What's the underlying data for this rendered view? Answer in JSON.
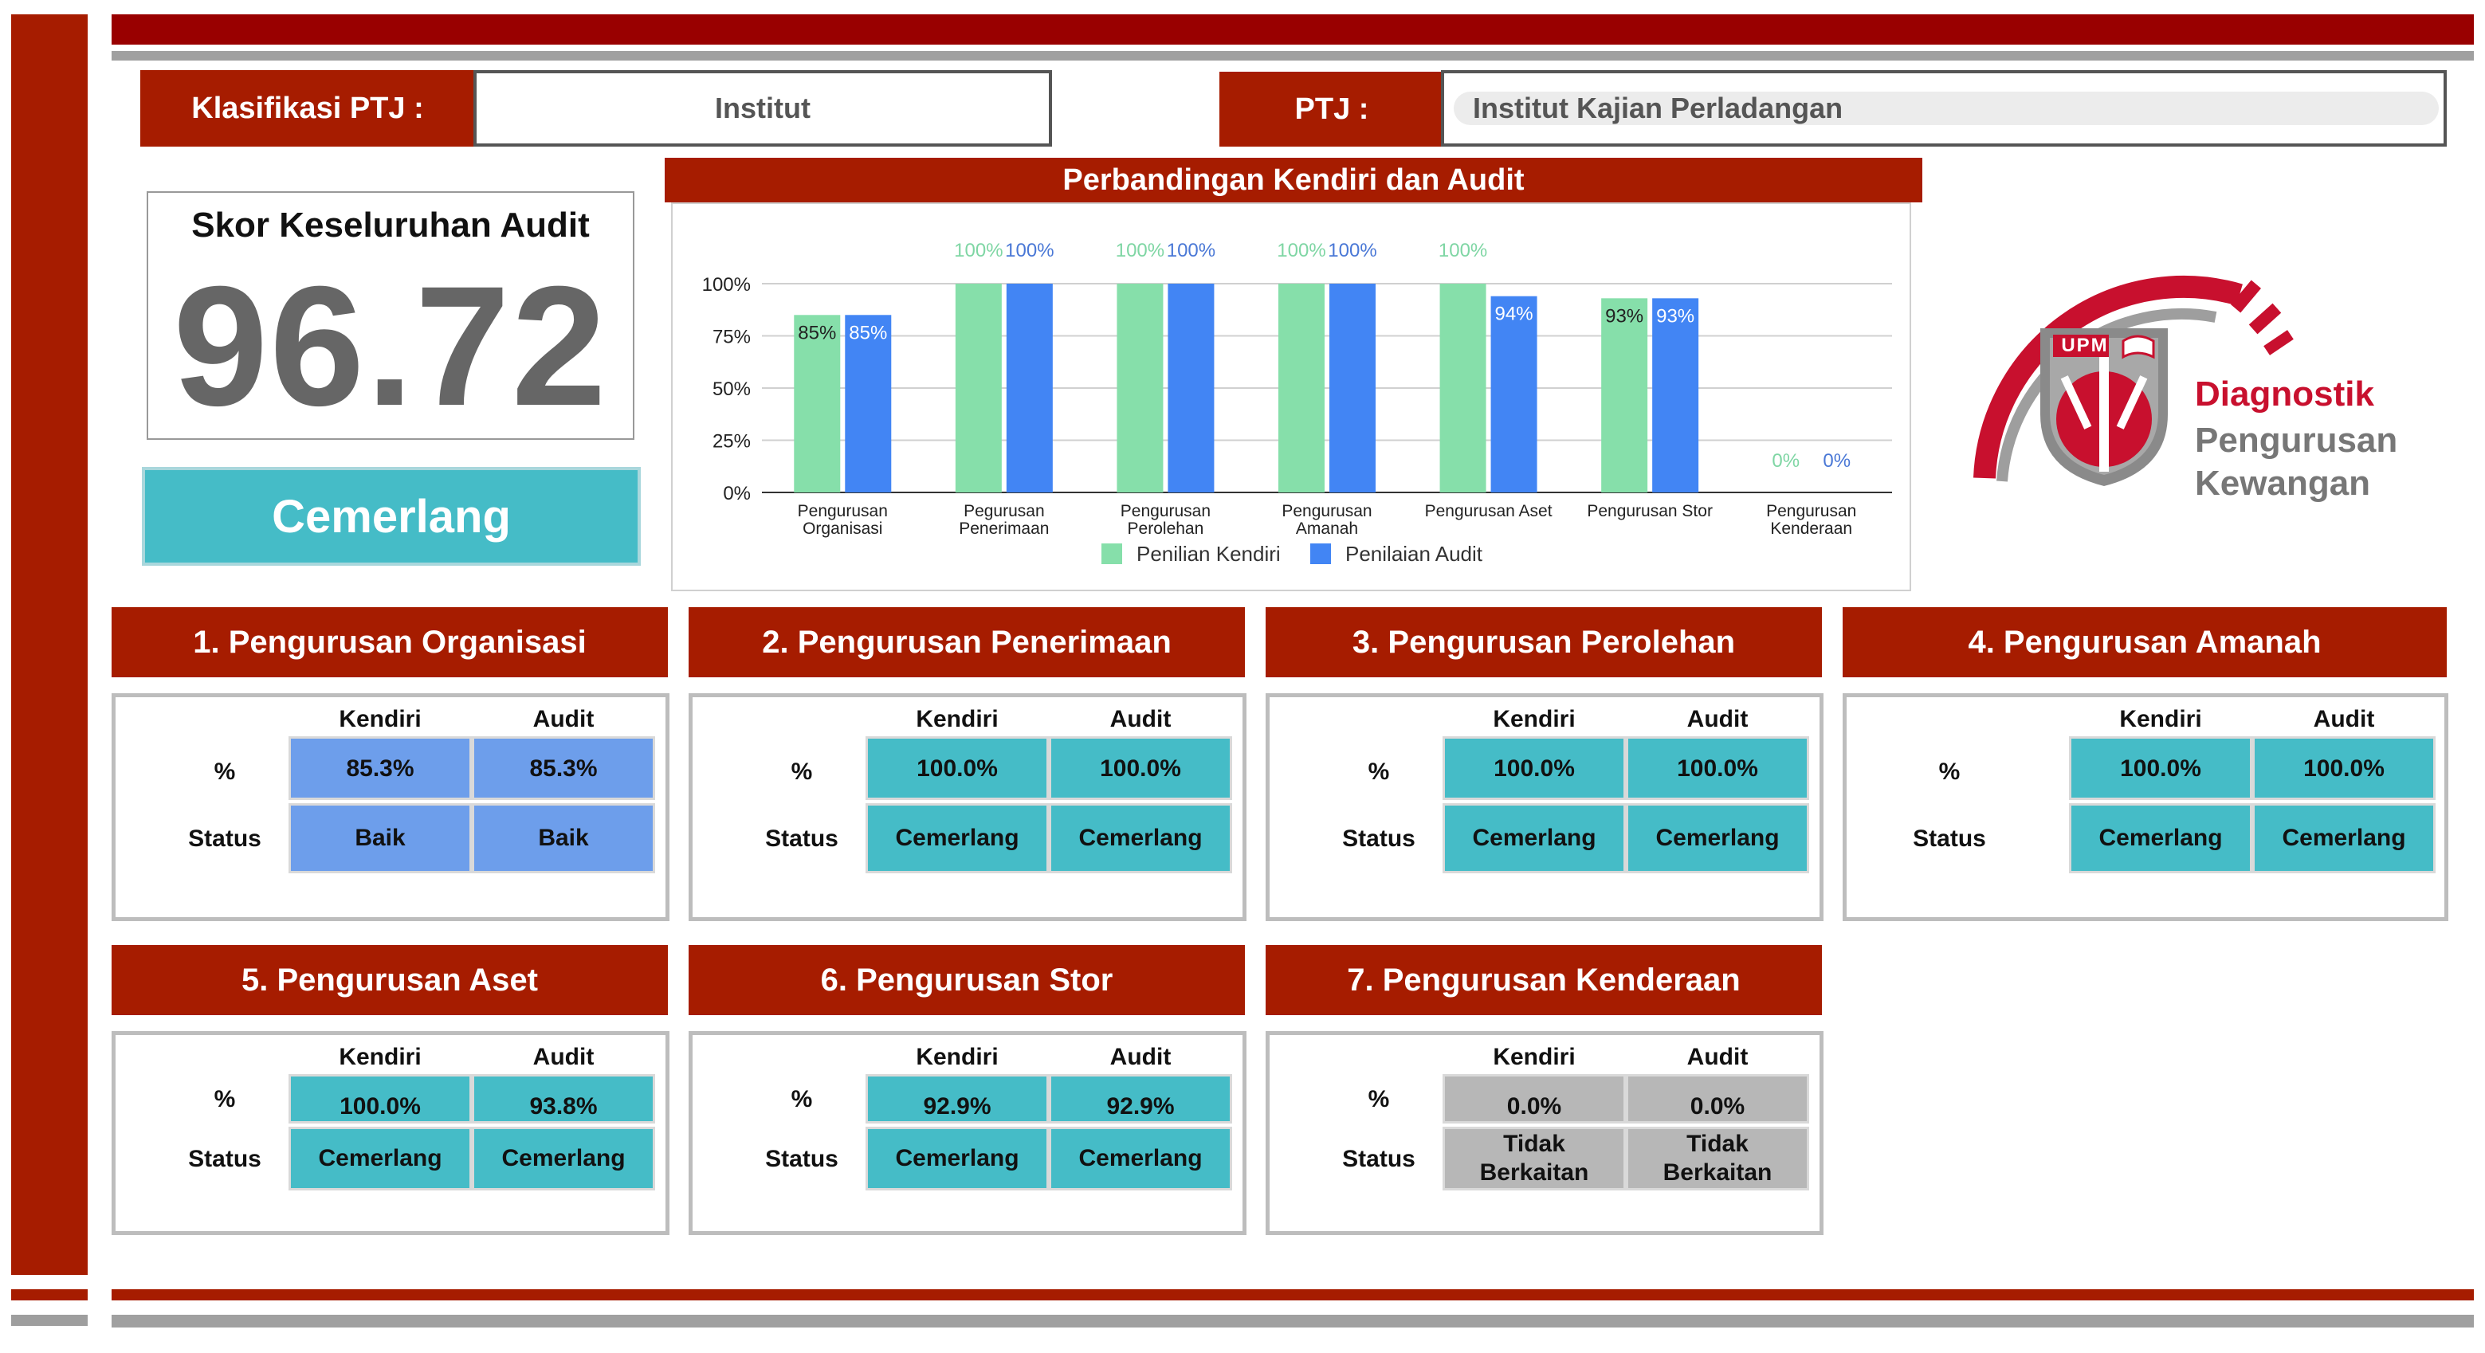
{
  "header": {
    "klasifikasi_label": "Klasifikasi PTJ :",
    "klasifikasi_value": "Institut",
    "ptj_label": "PTJ :",
    "ptj_value": "Institut Kajian Perladangan"
  },
  "score": {
    "title": "Skor Keseluruhan Audit",
    "value": "96.72",
    "grade": "Cemerlang"
  },
  "logo": {
    "badge": "UPM",
    "line1": "Diagnostik",
    "line2": "Pengurusan",
    "line3": "Kewangan"
  },
  "colors": {
    "brand_red": "#a61c00",
    "kendiri_green": "#86dfaa",
    "audit_blue": "#4285f4",
    "cemerlang_teal": "#45bcc7",
    "baik_blue": "#6d9eeb",
    "neutral_grey": "#b7b7b7"
  },
  "chart_data": {
    "type": "bar",
    "title": "Perbandingan Kendiri dan Audit",
    "categories": [
      [
        "Pengurusan",
        "Organisasi"
      ],
      [
        "Pegurusan",
        "Penerimaan"
      ],
      [
        "Pengurusan",
        "Perolehan"
      ],
      [
        "Pengurusan",
        "Amanah"
      ],
      [
        "Pengurusan Aset"
      ],
      [
        "Pengurusan Stor"
      ],
      [
        "Pengurusan",
        "Kenderaan"
      ]
    ],
    "series": [
      {
        "name": "Penilian Kendiri",
        "values": [
          85,
          100,
          100,
          100,
          100,
          93,
          0
        ],
        "labels": [
          "85%",
          "100%",
          "100%",
          "100%",
          "100%",
          "93%",
          "0%"
        ]
      },
      {
        "name": "Penilaian Audit",
        "values": [
          85,
          100,
          100,
          100,
          94,
          93,
          0
        ],
        "labels": [
          "85%",
          "100%",
          "100%",
          "100%",
          "94%",
          "93%",
          "0%"
        ]
      }
    ],
    "ylim": [
      0,
      100
    ],
    "yticks": [
      "0%",
      "25%",
      "50%",
      "75%",
      "100%"
    ],
    "grid": true,
    "legend": "bottom"
  },
  "table_headers": {
    "kendiri": "Kendiri",
    "audit": "Audit",
    "percent": "%",
    "status": "Status"
  },
  "sections": [
    {
      "title": "1. Pengurusan Organisasi",
      "kendiri_pct": "85.3%",
      "audit_pct": "85.3%",
      "kendiri_status": "Baik",
      "audit_status": "Baik",
      "color": "#6d9eeb"
    },
    {
      "title": "2. Pengurusan Penerimaan",
      "kendiri_pct": "100.0%",
      "audit_pct": "100.0%",
      "kendiri_status": "Cemerlang",
      "audit_status": "Cemerlang",
      "color": "#45bcc7"
    },
    {
      "title": "3. Pengurusan Perolehan",
      "kendiri_pct": "100.0%",
      "audit_pct": "100.0%",
      "kendiri_status": "Cemerlang",
      "audit_status": "Cemerlang",
      "color": "#45bcc7"
    },
    {
      "title": "4. Pengurusan Amanah",
      "kendiri_pct": "100.0%",
      "audit_pct": "100.0%",
      "kendiri_status": "Cemerlang",
      "audit_status": "Cemerlang",
      "color": "#45bcc7"
    },
    {
      "title": "5. Pengurusan Aset",
      "kendiri_pct": "100.0%",
      "audit_pct": "93.8%",
      "kendiri_status": "Cemerlang",
      "audit_status": "Cemerlang",
      "color": "#45bcc7"
    },
    {
      "title": "6. Pengurusan Stor",
      "kendiri_pct": "92.9%",
      "audit_pct": "92.9%",
      "kendiri_status": "Cemerlang",
      "audit_status": "Cemerlang",
      "color": "#45bcc7"
    },
    {
      "title": "7. Pengurusan Kenderaan",
      "kendiri_pct": "0.0%",
      "audit_pct": "0.0%",
      "kendiri_status": "Tidak Berkaitan",
      "audit_status": "Tidak Berkaitan",
      "color": "#b7b7b7"
    }
  ]
}
